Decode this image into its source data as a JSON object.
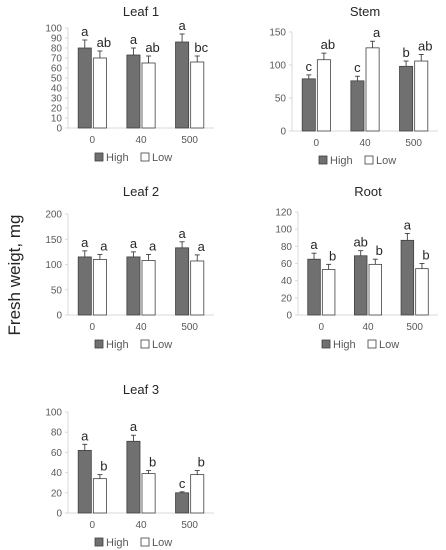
{
  "figure": {
    "ylabel": "Fresh weigt, mg",
    "legend": {
      "high_label": "High",
      "low_label": "Low"
    },
    "colors": {
      "high": "#707070",
      "low": "#ffffff",
      "bar_stroke": "#404040",
      "axis": "#d9d9d9"
    }
  },
  "chart_data": [
    {
      "type": "bar",
      "title": "Leaf 1",
      "categories": [
        "0",
        "40",
        "500"
      ],
      "ylim": [
        0,
        100
      ],
      "yticks": [
        0,
        10,
        20,
        30,
        40,
        50,
        60,
        70,
        80,
        90,
        100
      ],
      "series": [
        {
          "name": "High",
          "values": [
            80,
            73,
            86
          ],
          "errors": [
            8,
            7,
            8
          ],
          "letters": [
            "a",
            "a",
            "a"
          ]
        },
        {
          "name": "Low",
          "values": [
            70,
            65,
            66
          ],
          "errors": [
            7,
            7,
            6
          ],
          "letters": [
            "ab",
            "ab",
            "bc"
          ]
        }
      ]
    },
    {
      "type": "bar",
      "title": "Stem",
      "categories": [
        "0",
        "40",
        "500"
      ],
      "ylim": [
        0,
        150
      ],
      "yticks": [
        0,
        50,
        100,
        150
      ],
      "series": [
        {
          "name": "High",
          "values": [
            79,
            76,
            98
          ],
          "errors": [
            6,
            7,
            8
          ],
          "letters": [
            "c",
            "c",
            "b"
          ]
        },
        {
          "name": "Low",
          "values": [
            108,
            126,
            106
          ],
          "errors": [
            10,
            10,
            10
          ],
          "letters": [
            "ab",
            "a",
            "ab"
          ]
        }
      ]
    },
    {
      "type": "bar",
      "title": "Leaf 2",
      "categories": [
        "0",
        "40",
        "500"
      ],
      "ylim": [
        0,
        200
      ],
      "yticks": [
        0,
        50,
        100,
        150,
        200
      ],
      "series": [
        {
          "name": "High",
          "values": [
            115,
            115,
            133
          ],
          "errors": [
            12,
            10,
            12
          ],
          "letters": [
            "a",
            "a",
            "a"
          ]
        },
        {
          "name": "Low",
          "values": [
            110,
            108,
            107
          ],
          "errors": [
            10,
            12,
            12
          ],
          "letters": [
            "a",
            "a",
            "a"
          ]
        }
      ]
    },
    {
      "type": "bar",
      "title": "Root",
      "categories": [
        "0",
        "40",
        "500"
      ],
      "ylim": [
        0,
        120
      ],
      "yticks": [
        0,
        20,
        40,
        60,
        80,
        100,
        120
      ],
      "series": [
        {
          "name": "High",
          "values": [
            65,
            69,
            87
          ],
          "errors": [
            7,
            6,
            8
          ],
          "letters": [
            "a",
            "ab",
            "a"
          ]
        },
        {
          "name": "Low",
          "values": [
            53,
            59,
            54
          ],
          "errors": [
            6,
            6,
            6
          ],
          "letters": [
            "b",
            "b",
            "b"
          ]
        }
      ]
    },
    {
      "type": "bar",
      "title": "Leaf 3",
      "categories": [
        "0",
        "40",
        "500"
      ],
      "ylim": [
        0,
        100
      ],
      "yticks": [
        0,
        20,
        40,
        60,
        80,
        100
      ],
      "series": [
        {
          "name": "High",
          "values": [
            62,
            71,
            20
          ],
          "errors": [
            6,
            6,
            1
          ],
          "letters": [
            "a",
            "a",
            "c"
          ]
        },
        {
          "name": "Low",
          "values": [
            34,
            39,
            38
          ],
          "errors": [
            4,
            3,
            4
          ],
          "letters": [
            "b",
            "b",
            "b"
          ]
        }
      ]
    }
  ]
}
